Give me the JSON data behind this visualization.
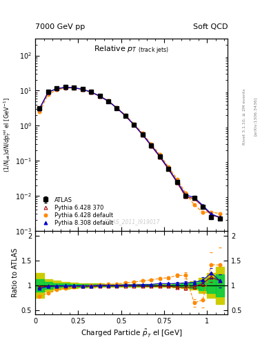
{
  "title_main": "Relative $p_T$ (track jets)",
  "header_left": "7000 GeV pp",
  "header_right": "Soft QCD",
  "watermark": "ATLAS_2011_I919017",
  "rivet_text": "Rivet 3.1.10, ≥ 2M events",
  "arxiv_text": "[arXiv:1306.3436]",
  "xlabel": "Charged Particle $\\tilde{p}_T^{}$ el [GeV]",
  "ylabel_main": "(1/N_{jet})dN/dp$^{rel}_T$ el [GeV$^{-1}$]",
  "ylabel_ratio": "Ratio to ATLAS",
  "xlim": [
    0.0,
    1.12
  ],
  "ylim_main": [
    0.001,
    300
  ],
  "ylim_ratio": [
    0.42,
    2.1
  ],
  "atlas_x": [
    0.025,
    0.075,
    0.125,
    0.175,
    0.225,
    0.275,
    0.325,
    0.375,
    0.425,
    0.475,
    0.525,
    0.575,
    0.625,
    0.675,
    0.725,
    0.775,
    0.825,
    0.875,
    0.925,
    0.975,
    1.025,
    1.075
  ],
  "atlas_y": [
    3.2,
    9.2,
    11.5,
    12.5,
    12.2,
    11.0,
    9.2,
    7.0,
    5.0,
    3.2,
    1.9,
    1.05,
    0.55,
    0.27,
    0.13,
    0.058,
    0.025,
    0.01,
    0.0085,
    0.0048,
    0.0024,
    0.0022
  ],
  "atlas_yerr": [
    0.15,
    0.25,
    0.25,
    0.25,
    0.25,
    0.25,
    0.2,
    0.18,
    0.12,
    0.08,
    0.05,
    0.025,
    0.013,
    0.007,
    0.004,
    0.002,
    0.001,
    0.0005,
    0.0004,
    0.0003,
    0.0002,
    0.0002
  ],
  "p6_370_y": [
    3.1,
    9.0,
    11.3,
    12.3,
    12.0,
    10.8,
    9.0,
    6.9,
    4.95,
    3.15,
    1.88,
    1.04,
    0.54,
    0.265,
    0.128,
    0.057,
    0.024,
    0.0095,
    0.0082,
    0.005,
    0.0028,
    0.0024
  ],
  "p6_def_y": [
    2.5,
    7.8,
    10.5,
    11.8,
    11.9,
    10.9,
    9.2,
    7.1,
    5.1,
    3.3,
    2.0,
    1.12,
    0.6,
    0.3,
    0.148,
    0.067,
    0.03,
    0.012,
    0.0055,
    0.0034,
    0.0034,
    0.0031
  ],
  "p8_def_y": [
    3.0,
    9.0,
    11.4,
    12.4,
    12.1,
    10.9,
    9.1,
    7.0,
    5.0,
    3.2,
    1.92,
    1.06,
    0.56,
    0.275,
    0.135,
    0.06,
    0.026,
    0.0105,
    0.009,
    0.0053,
    0.003,
    0.0024
  ],
  "ratio_p6_370_y": [
    0.97,
    0.978,
    0.983,
    0.984,
    0.984,
    0.982,
    0.978,
    0.986,
    0.99,
    0.984,
    0.989,
    0.99,
    0.982,
    0.981,
    0.985,
    0.983,
    0.96,
    0.95,
    0.965,
    1.042,
    1.167,
    1.091
  ],
  "ratio_p6_370_yerr": [
    0.02,
    0.015,
    0.012,
    0.01,
    0.01,
    0.01,
    0.01,
    0.01,
    0.01,
    0.01,
    0.01,
    0.01,
    0.012,
    0.012,
    0.015,
    0.018,
    0.022,
    0.03,
    0.04,
    0.06,
    0.1,
    0.13
  ],
  "ratio_p6_def_y": [
    0.78,
    0.848,
    0.913,
    0.944,
    0.975,
    0.991,
    1.0,
    1.014,
    1.02,
    1.031,
    1.053,
    1.067,
    1.091,
    1.111,
    1.138,
    1.155,
    1.2,
    1.2,
    0.647,
    0.708,
    1.417,
    1.409
  ],
  "ratio_p6_def_yerr": [
    0.02,
    0.015,
    0.012,
    0.01,
    0.01,
    0.01,
    0.01,
    0.01,
    0.01,
    0.01,
    0.012,
    0.012,
    0.015,
    0.018,
    0.022,
    0.028,
    0.04,
    0.06,
    0.08,
    0.15,
    0.25,
    0.35
  ],
  "ratio_p8_def_y": [
    0.938,
    0.978,
    0.991,
    0.992,
    0.992,
    0.991,
    0.989,
    1.0,
    1.0,
    1.0,
    1.011,
    1.01,
    1.018,
    1.019,
    1.038,
    1.034,
    1.04,
    1.05,
    1.059,
    1.104,
    1.25,
    1.091
  ],
  "ratio_p8_def_yerr": [
    0.02,
    0.015,
    0.012,
    0.01,
    0.01,
    0.01,
    0.01,
    0.01,
    0.01,
    0.01,
    0.01,
    0.01,
    0.012,
    0.012,
    0.015,
    0.018,
    0.022,
    0.03,
    0.04,
    0.06,
    0.1,
    0.13
  ],
  "band_edges": [
    0.0,
    0.05,
    0.1,
    0.15,
    0.2,
    0.25,
    0.3,
    0.35,
    0.4,
    0.45,
    0.5,
    0.55,
    0.6,
    0.65,
    0.7,
    0.75,
    0.8,
    0.85,
    0.9,
    0.95,
    1.0,
    1.05,
    1.1
  ],
  "band_green_lo": [
    0.87,
    0.935,
    0.955,
    0.965,
    0.97,
    0.975,
    0.978,
    0.98,
    0.983,
    0.985,
    0.986,
    0.987,
    0.987,
    0.986,
    0.985,
    0.982,
    0.975,
    0.965,
    0.948,
    0.9,
    0.85,
    0.78,
    0.7
  ],
  "band_green_hi": [
    1.13,
    1.065,
    1.045,
    1.035,
    1.03,
    1.025,
    1.022,
    1.02,
    1.017,
    1.015,
    1.014,
    1.013,
    1.013,
    1.014,
    1.015,
    1.018,
    1.025,
    1.035,
    1.052,
    1.1,
    1.15,
    1.22,
    1.3
  ],
  "band_yellow_lo": [
    0.75,
    0.87,
    0.91,
    0.935,
    0.95,
    0.958,
    0.962,
    0.965,
    0.968,
    0.972,
    0.974,
    0.975,
    0.975,
    0.974,
    0.972,
    0.967,
    0.957,
    0.942,
    0.917,
    0.85,
    0.75,
    0.62,
    0.45
  ],
  "band_yellow_hi": [
    1.25,
    1.13,
    1.09,
    1.065,
    1.05,
    1.042,
    1.038,
    1.035,
    1.032,
    1.028,
    1.026,
    1.025,
    1.025,
    1.026,
    1.028,
    1.033,
    1.043,
    1.058,
    1.083,
    1.15,
    1.25,
    1.38,
    1.55
  ],
  "color_atlas": "#000000",
  "color_p6_370": "#aa0000",
  "color_p6_def": "#ff8800",
  "color_p8_def": "#0000cc",
  "color_green": "#00cc44",
  "color_yellow": "#cccc00",
  "bg_color": "#ffffff"
}
